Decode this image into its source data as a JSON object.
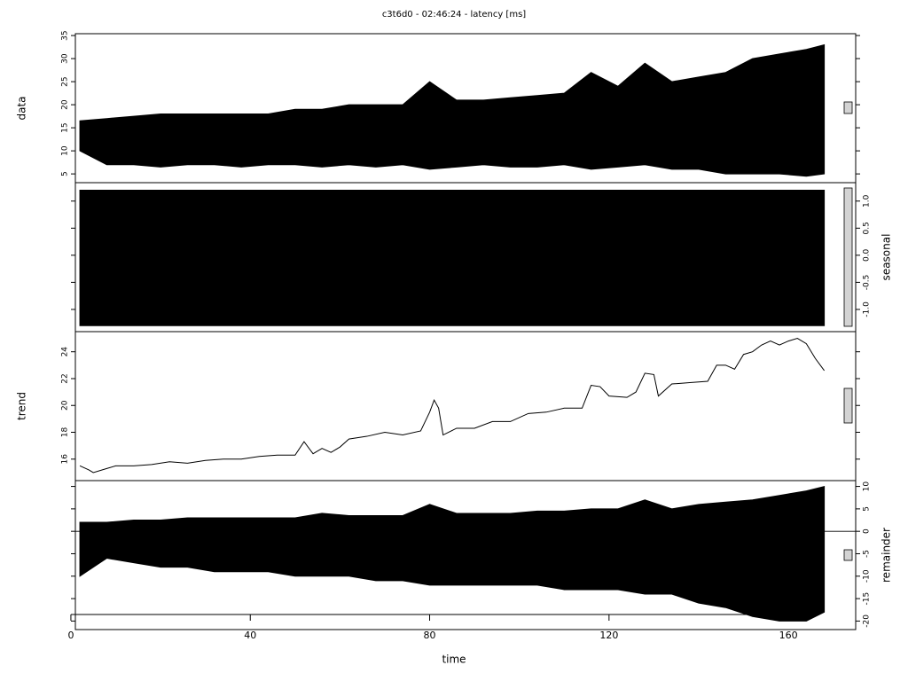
{
  "chart_data": [
    {
      "type": "band",
      "title": "c3t6d0 - 02:46:24 - latency [ms]",
      "ylabel": "data",
      "axis_side": "left",
      "color": "#000000",
      "xlim": [
        1,
        175
      ],
      "ylim": [
        3.1,
        35.4
      ],
      "yticks": [
        5,
        10,
        15,
        20,
        25,
        30,
        35
      ],
      "x": [
        2,
        8,
        14,
        20,
        26,
        32,
        38,
        44,
        50,
        56,
        62,
        68,
        74,
        80,
        86,
        92,
        98,
        104,
        110,
        116,
        122,
        128,
        134,
        140,
        146,
        152,
        158,
        164,
        168
      ],
      "upper": [
        16.5,
        17,
        17.5,
        18,
        18,
        18,
        18,
        18,
        19,
        19,
        20,
        20,
        20,
        25,
        21,
        21,
        21.5,
        22,
        22.5,
        27,
        24,
        29,
        25,
        26,
        27,
        30,
        31,
        32,
        33
      ],
      "lower": [
        10,
        7,
        7,
        6.5,
        7,
        7,
        6.5,
        7,
        7,
        6.5,
        7,
        6.5,
        7,
        6,
        6.5,
        7,
        6.5,
        6.5,
        7,
        6,
        6.5,
        7,
        6,
        6,
        5,
        5,
        5,
        4.5,
        5
      ]
    },
    {
      "type": "band",
      "ylabel": "seasonal",
      "axis_side": "right",
      "color": "#000000",
      "xlim": [
        1,
        175
      ],
      "ylim": [
        -1.41,
        1.34
      ],
      "yticks": [
        {
          "value": -1,
          "label": "-1.0"
        },
        {
          "value": -0.5,
          "label": "-0.5"
        },
        {
          "value": 0,
          "label": "0.0"
        },
        {
          "value": 0.5,
          "label": "0.5"
        },
        {
          "value": 1,
          "label": "1.0"
        }
      ],
      "x": [
        2,
        168
      ],
      "upper": [
        1.2,
        1.2
      ],
      "lower": [
        -1.3,
        -1.3
      ]
    },
    {
      "type": "line",
      "ylabel": "trend",
      "axis_side": "left",
      "color": "#000000",
      "xlim": [
        1,
        175
      ],
      "ylim": [
        14.4,
        25.5
      ],
      "yticks": [
        16,
        18,
        20,
        22,
        24
      ],
      "x": [
        2,
        4,
        5,
        8,
        10,
        14,
        18,
        22,
        26,
        30,
        34,
        38,
        42,
        46,
        50,
        52,
        54,
        56,
        58,
        60,
        62,
        66,
        70,
        74,
        78,
        80,
        81,
        82,
        83,
        86,
        90,
        94,
        98,
        102,
        106,
        110,
        114,
        116,
        118,
        120,
        124,
        126,
        128,
        130,
        131,
        134,
        138,
        142,
        144,
        146,
        148,
        150,
        152,
        154,
        156,
        158,
        160,
        162,
        164,
        166,
        168
      ],
      "values": [
        15.5,
        15.2,
        15.0,
        15.3,
        15.5,
        15.5,
        15.6,
        15.8,
        15.7,
        15.9,
        16.0,
        16.0,
        16.2,
        16.3,
        16.3,
        17.3,
        16.4,
        16.8,
        16.5,
        16.9,
        17.5,
        17.7,
        18.0,
        17.8,
        18.1,
        19.5,
        20.4,
        19.8,
        17.8,
        18.3,
        18.3,
        18.8,
        18.8,
        19.4,
        19.5,
        19.8,
        19.8,
        21.5,
        21.4,
        20.7,
        20.6,
        21.0,
        22.4,
        22.3,
        20.7,
        21.6,
        21.7,
        21.8,
        23.0,
        23.0,
        22.7,
        23.8,
        24.0,
        24.5,
        24.8,
        24.5,
        24.8,
        25.0,
        24.6,
        23.5,
        22.6
      ]
    },
    {
      "type": "band",
      "ylabel": "remainder",
      "axis_side": "right",
      "color": "#000000",
      "xlabel": "time",
      "xlim": [
        1,
        175
      ],
      "ylim": [
        -21.9,
        11.3
      ],
      "yticks": [
        -20,
        -15,
        -10,
        -5,
        0,
        5,
        10
      ],
      "xticks": [
        0,
        40,
        80,
        120,
        160
      ],
      "x": [
        2,
        8,
        14,
        20,
        26,
        32,
        38,
        44,
        50,
        56,
        62,
        68,
        74,
        80,
        86,
        92,
        98,
        104,
        110,
        116,
        122,
        128,
        134,
        140,
        146,
        152,
        158,
        164,
        168
      ],
      "upper": [
        2,
        2,
        2.5,
        2.5,
        3,
        3,
        3,
        3,
        3,
        4,
        3.5,
        3.5,
        3.5,
        6,
        4,
        4,
        4,
        4.5,
        4.5,
        5,
        5,
        7,
        5,
        6,
        6.5,
        7,
        8,
        9,
        10
      ],
      "lower": [
        -10,
        -6,
        -7,
        -8,
        -8,
        -9,
        -9,
        -9,
        -10,
        -10,
        -10,
        -11,
        -11,
        -12,
        -12,
        -12,
        -12,
        -12,
        -13,
        -13,
        -13,
        -14,
        -14,
        -16,
        -17,
        -19,
        -20,
        -20,
        -18
      ]
    }
  ]
}
